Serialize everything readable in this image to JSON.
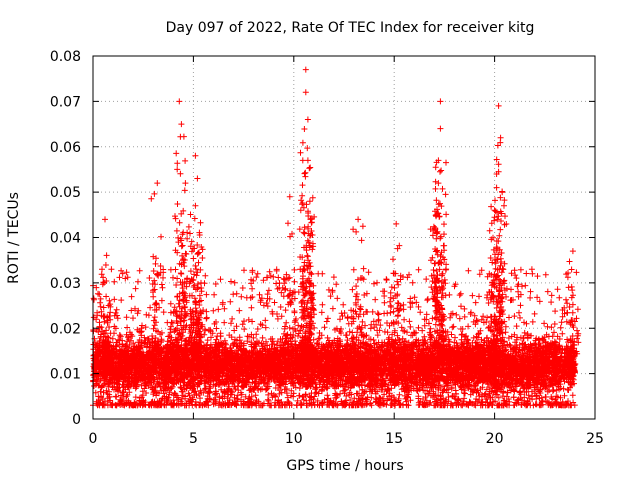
{
  "chart_data": {
    "type": "scatter",
    "title": "Day 097 of 2022, Rate Of TEC Index for receiver kitg",
    "xlabel": "GPS time / hours",
    "ylabel": "ROTI / TECUs",
    "xlim": [
      0,
      25
    ],
    "ylim": [
      0,
      0.08
    ],
    "x_ticks": [
      "0",
      "5",
      "10",
      "15",
      "20",
      "25"
    ],
    "y_ticks": [
      "0",
      "0.01",
      "0.02",
      "0.03",
      "0.04",
      "0.05",
      "0.06",
      "0.07",
      "0.08"
    ],
    "grid": true,
    "legend": "none",
    "marker": "+",
    "marker_color": "#ff0000",
    "series": [
      {
        "x_range_hours": [
          0,
          24
        ],
        "typical_range": [
          0.003,
          0.02
        ],
        "peaks": [
          {
            "x": 0.6,
            "y": 0.044
          },
          {
            "x": 3.2,
            "y": 0.052
          },
          {
            "x": 4.3,
            "y": 0.07
          },
          {
            "x": 4.4,
            "y": 0.065
          },
          {
            "x": 4.6,
            "y": 0.052
          },
          {
            "x": 5.1,
            "y": 0.058
          },
          {
            "x": 5.2,
            "y": 0.053
          },
          {
            "x": 5.1,
            "y": 0.047
          },
          {
            "x": 9.8,
            "y": 0.049
          },
          {
            "x": 10.6,
            "y": 0.077
          },
          {
            "x": 10.6,
            "y": 0.072
          },
          {
            "x": 10.7,
            "y": 0.066
          },
          {
            "x": 10.7,
            "y": 0.057
          },
          {
            "x": 10.8,
            "y": 0.048
          },
          {
            "x": 13.2,
            "y": 0.044
          },
          {
            "x": 15.1,
            "y": 0.043
          },
          {
            "x": 17.3,
            "y": 0.07
          },
          {
            "x": 17.3,
            "y": 0.064
          },
          {
            "x": 17.2,
            "y": 0.057
          },
          {
            "x": 17.2,
            "y": 0.052
          },
          {
            "x": 17.1,
            "y": 0.045
          },
          {
            "x": 20.2,
            "y": 0.069
          },
          {
            "x": 20.3,
            "y": 0.062
          },
          {
            "x": 20.1,
            "y": 0.054
          },
          {
            "x": 20.1,
            "y": 0.051
          },
          {
            "x": 20.0,
            "y": 0.046
          },
          {
            "x": 23.9,
            "y": 0.037
          }
        ]
      }
    ]
  }
}
